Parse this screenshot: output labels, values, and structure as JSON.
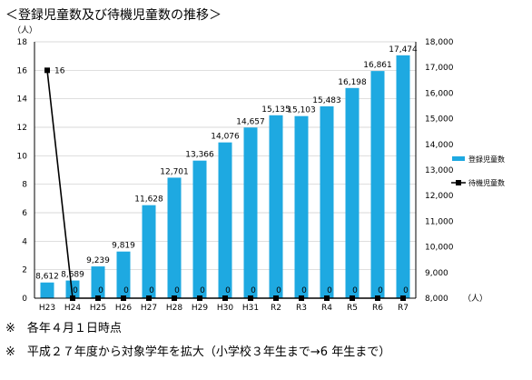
{
  "title": "＜登録児童数及び待機児童数の推移＞",
  "notes": [
    "※　各年４月１日時点",
    "※　平成２７年度から対象学年を拡大（小学校３年生まで→6 年生まで）"
  ],
  "colors": {
    "bar": "#1ea9e1",
    "line": "#000000",
    "grid": "#cccccc"
  },
  "chart_data": {
    "type": "bar",
    "categories": [
      "H23",
      "H24",
      "H25",
      "H26",
      "H27",
      "H28",
      "H29",
      "H30",
      "H31",
      "R2",
      "R3",
      "R4",
      "R5",
      "R6",
      "R7"
    ],
    "series": [
      {
        "name": "登録児童数",
        "type": "bar",
        "axis": "right",
        "values": [
          8612,
          8689,
          9239,
          9819,
          11628,
          12701,
          13366,
          14076,
          14657,
          15135,
          15103,
          15483,
          16198,
          16861,
          17474
        ],
        "labels": [
          "8,612",
          "8,689",
          "9,239",
          "9,819",
          "11,628",
          "12,701",
          "13,366",
          "14,076",
          "14,657",
          "15,135",
          "15,103",
          "15,483",
          "16,198",
          "16,861",
          "17,474"
        ]
      },
      {
        "name": "待機児童数",
        "type": "line",
        "axis": "left",
        "values": [
          16,
          0,
          0,
          0,
          0,
          0,
          0,
          0,
          0,
          0,
          0,
          0,
          0,
          0,
          0
        ],
        "labels": [
          "16",
          "0",
          "0",
          "0",
          "0",
          "0",
          "0",
          "0",
          "0",
          "0",
          "0",
          "0",
          "0",
          "0",
          "0"
        ]
      }
    ],
    "left_axis": {
      "unit": "（人）",
      "min": 0,
      "max": 18,
      "step": 2,
      "ticks": [
        "0",
        "2",
        "4",
        "6",
        "8",
        "10",
        "12",
        "14",
        "16",
        "18"
      ]
    },
    "right_axis": {
      "unit": "（人）",
      "min": 8000,
      "max": 18000,
      "step": 1000,
      "ticks": [
        "8,000",
        "9,000",
        "10,000",
        "11,000",
        "12,000",
        "13,000",
        "14,000",
        "15,000",
        "16,000",
        "17,000",
        "18,000"
      ]
    },
    "legend": [
      "登録児童数",
      "待機児童数"
    ],
    "legend_position": "right",
    "grid": true
  }
}
